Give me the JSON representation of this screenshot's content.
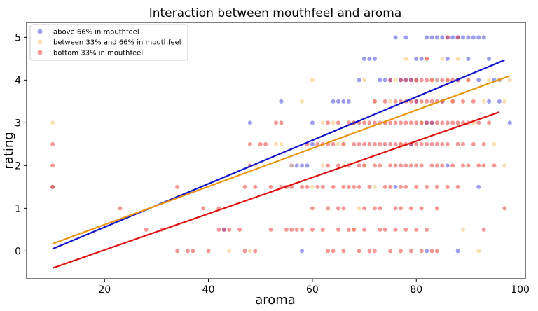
{
  "chart_data": {
    "type": "scatter",
    "title": "Interaction between mouthfeel and aroma",
    "xlabel": "aroma",
    "ylabel": "rating",
    "xlim": [
      5,
      101
    ],
    "ylim": [
      -0.65,
      5.35
    ],
    "xticks": [
      20,
      40,
      60,
      80,
      100
    ],
    "yticks": [
      0,
      1,
      2,
      3,
      4,
      5
    ],
    "grid": false,
    "legend_position": "top-left",
    "series": [
      {
        "name": "above 66% in mouthfeel",
        "color": "#3b3bdb",
        "line": {
          "x": [
            10,
            97
          ],
          "y": [
            0.05,
            4.47
          ],
          "color": "#1010c8"
        },
        "points": [
          [
            10,
            1.5
          ],
          [
            48,
            3
          ],
          [
            54,
            3.5
          ],
          [
            56,
            2
          ],
          [
            57,
            2
          ],
          [
            58,
            2
          ],
          [
            59,
            2
          ],
          [
            60,
            2.5
          ],
          [
            60,
            3
          ],
          [
            64,
            3.5
          ],
          [
            65,
            3.5
          ],
          [
            66,
            3.5
          ],
          [
            67,
            3.5
          ],
          [
            68,
            3
          ],
          [
            69,
            4
          ],
          [
            70,
            4.5
          ],
          [
            71,
            4.5
          ],
          [
            72,
            4.5
          ],
          [
            73,
            4
          ],
          [
            74,
            4
          ],
          [
            75,
            4
          ],
          [
            76,
            5
          ],
          [
            77,
            4
          ],
          [
            78,
            5
          ],
          [
            79,
            4
          ],
          [
            80,
            4
          ],
          [
            81,
            4.5
          ],
          [
            82,
            5
          ],
          [
            83,
            5
          ],
          [
            84,
            5
          ],
          [
            85,
            5
          ],
          [
            86,
            5
          ],
          [
            87,
            5
          ],
          [
            88,
            5
          ],
          [
            89,
            5
          ],
          [
            90,
            5
          ],
          [
            91,
            5
          ],
          [
            92,
            5
          ],
          [
            93,
            5
          ],
          [
            94,
            4.5
          ],
          [
            95,
            4
          ],
          [
            96,
            4
          ],
          [
            86,
            2
          ],
          [
            88,
            0
          ],
          [
            82,
            0
          ],
          [
            58,
            0
          ],
          [
            43,
            0.5
          ],
          [
            98,
            3
          ],
          [
            92,
            1.5
          ],
          [
            85,
            3.5
          ],
          [
            83,
            3
          ],
          [
            79,
            2.5
          ],
          [
            76,
            1.5
          ],
          [
            78,
            4
          ],
          [
            80,
            4.5
          ],
          [
            84,
            4
          ],
          [
            86,
            4.5
          ],
          [
            88,
            4
          ],
          [
            90,
            4.5
          ],
          [
            92,
            4
          ],
          [
            94,
            3.5
          ],
          [
            96,
            3.5
          ],
          [
            80,
            3.5
          ],
          [
            82,
            3
          ]
        ]
      },
      {
        "name": "between 33% and 66% in mouthfeel",
        "color": "#f5c36b",
        "line": {
          "x": [
            10,
            98
          ],
          "y": [
            0.17,
            4.1
          ],
          "color": "#e8950c"
        },
        "points": [
          [
            10,
            3
          ],
          [
            10,
            1.5
          ],
          [
            44,
            0
          ],
          [
            48,
            0
          ],
          [
            53,
            2.5
          ],
          [
            54,
            2.5
          ],
          [
            58,
            3.5
          ],
          [
            60,
            4
          ],
          [
            62,
            2
          ],
          [
            62,
            3
          ],
          [
            64,
            3
          ],
          [
            65,
            2.5
          ],
          [
            66,
            2.5
          ],
          [
            68,
            3
          ],
          [
            69,
            1
          ],
          [
            70,
            4
          ],
          [
            72,
            3.5
          ],
          [
            74,
            3
          ],
          [
            75,
            3.5
          ],
          [
            76,
            4
          ],
          [
            77,
            2.5
          ],
          [
            78,
            4.5
          ],
          [
            80,
            4
          ],
          [
            81,
            3
          ],
          [
            82,
            4.5
          ],
          [
            83,
            4
          ],
          [
            84,
            4
          ],
          [
            85,
            4.5
          ],
          [
            86,
            4
          ],
          [
            87,
            3.5
          ],
          [
            88,
            4.5
          ],
          [
            89,
            0.5
          ],
          [
            90,
            4
          ],
          [
            91,
            3
          ],
          [
            92,
            0
          ],
          [
            93,
            3.5
          ],
          [
            94,
            4
          ],
          [
            95,
            2.5
          ],
          [
            96,
            4
          ],
          [
            97,
            2
          ],
          [
            98,
            4
          ],
          [
            97,
            3.5
          ],
          [
            70,
            2
          ],
          [
            72,
            1.5
          ],
          [
            68,
            0.5
          ],
          [
            66,
            2
          ],
          [
            56,
            2
          ],
          [
            60,
            1.5
          ],
          [
            49,
            2
          ]
        ]
      },
      {
        "name": "bottom 33% in mouthfeel",
        "color": "#e83030",
        "line": {
          "x": [
            10,
            96
          ],
          "y": [
            -0.4,
            3.25
          ],
          "color": "#e01010"
        },
        "points": [
          [
            10,
            2.5
          ],
          [
            10,
            2
          ],
          [
            10,
            1.5
          ],
          [
            23,
            1
          ],
          [
            28,
            0.5
          ],
          [
            31,
            0.5
          ],
          [
            34,
            0
          ],
          [
            34,
            1.5
          ],
          [
            36,
            0
          ],
          [
            37,
            0
          ],
          [
            39,
            1
          ],
          [
            40,
            0
          ],
          [
            42,
            1
          ],
          [
            42,
            0.5
          ],
          [
            43,
            0.5
          ],
          [
            44,
            0.5
          ],
          [
            46,
            0.5
          ],
          [
            47,
            0
          ],
          [
            47,
            1.5
          ],
          [
            48,
            2
          ],
          [
            48,
            2.5
          ],
          [
            49,
            0
          ],
          [
            49,
            1.5
          ],
          [
            50,
            2.5
          ],
          [
            51,
            2.5
          ],
          [
            52,
            0.5
          ],
          [
            52,
            1.5
          ],
          [
            53,
            3
          ],
          [
            54,
            1.5
          ],
          [
            54,
            3
          ],
          [
            55,
            0.5
          ],
          [
            55,
            1.5
          ],
          [
            56,
            0.5
          ],
          [
            56,
            1.5
          ],
          [
            57,
            0.5
          ],
          [
            58,
            0.5
          ],
          [
            58,
            1.5
          ],
          [
            59,
            1.5
          ],
          [
            59,
            2.5
          ],
          [
            60,
            1
          ],
          [
            60,
            0.5
          ],
          [
            61,
            1.5
          ],
          [
            61,
            2.5
          ],
          [
            62,
            0.5
          ],
          [
            62,
            1.5
          ],
          [
            62,
            2.5
          ],
          [
            63,
            0
          ],
          [
            63,
            1
          ],
          [
            63,
            2
          ],
          [
            63,
            2.5
          ],
          [
            63,
            3
          ],
          [
            64,
            0
          ],
          [
            64,
            1.5
          ],
          [
            64,
            2.5
          ],
          [
            65,
            0.5
          ],
          [
            65,
            1
          ],
          [
            65,
            2
          ],
          [
            65,
            3
          ],
          [
            66,
            0
          ],
          [
            66,
            1
          ],
          [
            66,
            1.5
          ],
          [
            66,
            2.5
          ],
          [
            67,
            0.5
          ],
          [
            67,
            1.5
          ],
          [
            67,
            2
          ],
          [
            67,
            3
          ],
          [
            68,
            0.5
          ],
          [
            68,
            1.5
          ],
          [
            68,
            2.5
          ],
          [
            68,
            3
          ],
          [
            69,
            0
          ],
          [
            69,
            1.5
          ],
          [
            69,
            2
          ],
          [
            69,
            2.5
          ],
          [
            69,
            3
          ],
          [
            70,
            0.5
          ],
          [
            70,
            1
          ],
          [
            70,
            2
          ],
          [
            70,
            2.5
          ],
          [
            70,
            3
          ],
          [
            71,
            0
          ],
          [
            71,
            1.5
          ],
          [
            71,
            2.5
          ],
          [
            71,
            3
          ],
          [
            72,
            0
          ],
          [
            72,
            1
          ],
          [
            72,
            2
          ],
          [
            72,
            2.5
          ],
          [
            72,
            3
          ],
          [
            72,
            3.5
          ],
          [
            73,
            0.5
          ],
          [
            73,
            1
          ],
          [
            73,
            2
          ],
          [
            73,
            2.5
          ],
          [
            73,
            3
          ],
          [
            74,
            0.5
          ],
          [
            74,
            1.5
          ],
          [
            74,
            2.5
          ],
          [
            74,
            3
          ],
          [
            74,
            3.5
          ],
          [
            75,
            0
          ],
          [
            75,
            1.5
          ],
          [
            75,
            2
          ],
          [
            75,
            2.5
          ],
          [
            75,
            3
          ],
          [
            75,
            4
          ],
          [
            76,
            0.5
          ],
          [
            76,
            1
          ],
          [
            76,
            2
          ],
          [
            76,
            2.5
          ],
          [
            76,
            3
          ],
          [
            76,
            3.5
          ],
          [
            77,
            0
          ],
          [
            77,
            1
          ],
          [
            77,
            1.5
          ],
          [
            77,
            2
          ],
          [
            77,
            2.5
          ],
          [
            77,
            3
          ],
          [
            77,
            3.5
          ],
          [
            77,
            4
          ],
          [
            78,
            0.5
          ],
          [
            78,
            1.5
          ],
          [
            78,
            2
          ],
          [
            78,
            2.5
          ],
          [
            78,
            3
          ],
          [
            78,
            3.5
          ],
          [
            78,
            4
          ],
          [
            79,
            0
          ],
          [
            79,
            1
          ],
          [
            79,
            2
          ],
          [
            79,
            2.5
          ],
          [
            79,
            3
          ],
          [
            79,
            3.5
          ],
          [
            79,
            4
          ],
          [
            80,
            0.5
          ],
          [
            80,
            1.5
          ],
          [
            80,
            2
          ],
          [
            80,
            2.5
          ],
          [
            80,
            3
          ],
          [
            80,
            3.5
          ],
          [
            80,
            4
          ],
          [
            81,
            0
          ],
          [
            81,
            1
          ],
          [
            81,
            2
          ],
          [
            81,
            2.5
          ],
          [
            81,
            3
          ],
          [
            81,
            3.5
          ],
          [
            81,
            4
          ],
          [
            82,
            0.5
          ],
          [
            82,
            1.5
          ],
          [
            82,
            2.5
          ],
          [
            82,
            3
          ],
          [
            82,
            3.5
          ],
          [
            82,
            4
          ],
          [
            82,
            4.5
          ],
          [
            83,
            0
          ],
          [
            83,
            2
          ],
          [
            83,
            2.5
          ],
          [
            83,
            3
          ],
          [
            83,
            3.5
          ],
          [
            83,
            4
          ],
          [
            84,
            0
          ],
          [
            84,
            1
          ],
          [
            84,
            1.5
          ],
          [
            84,
            2
          ],
          [
            84,
            2.5
          ],
          [
            84,
            3
          ],
          [
            84,
            3.5
          ],
          [
            85,
            2
          ],
          [
            85,
            2.5
          ],
          [
            85,
            3
          ],
          [
            85,
            3.5
          ],
          [
            85,
            4
          ],
          [
            86,
            1.5
          ],
          [
            86,
            2.5
          ],
          [
            86,
            3
          ],
          [
            86,
            4
          ],
          [
            86,
            5
          ],
          [
            87,
            2
          ],
          [
            87,
            3
          ],
          [
            87,
            3.5
          ],
          [
            87,
            4
          ],
          [
            88,
            1.5
          ],
          [
            88,
            2.5
          ],
          [
            88,
            3
          ],
          [
            88,
            4
          ],
          [
            88,
            5
          ],
          [
            89,
            2
          ],
          [
            89,
            2.5
          ],
          [
            89,
            3
          ],
          [
            89,
            3.5
          ],
          [
            90,
            2
          ],
          [
            90,
            3
          ],
          [
            90,
            4
          ],
          [
            91,
            2.5
          ],
          [
            91,
            3.5
          ],
          [
            92,
            2
          ],
          [
            92,
            3
          ],
          [
            93,
            0.5
          ],
          [
            93,
            2
          ],
          [
            93,
            2.5
          ],
          [
            94,
            3
          ],
          [
            95,
            2
          ],
          [
            97,
            1
          ]
        ]
      }
    ]
  }
}
